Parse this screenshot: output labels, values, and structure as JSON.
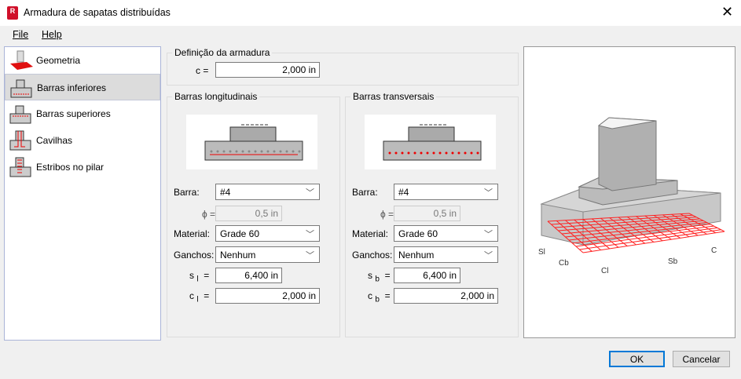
{
  "window": {
    "title": "Armadura de sapatas distribuídas",
    "close_icon": "close-icon"
  },
  "menu": {
    "file": "File",
    "help": "Help"
  },
  "sidebar": {
    "items": [
      {
        "label": "Geometria",
        "icon": "footing-geometry-icon"
      },
      {
        "label": "Barras inferiores",
        "icon": "bottom-bars-icon"
      },
      {
        "label": "Barras superiores",
        "icon": "top-bars-icon"
      },
      {
        "label": "Cavilhas",
        "icon": "dowels-icon"
      },
      {
        "label": "Estribos no pilar",
        "icon": "column-stirrups-icon"
      }
    ],
    "selected": "Barras inferiores"
  },
  "definition": {
    "title": "Definição da armadura",
    "c_label": "c =",
    "c_value": "2,000 in"
  },
  "longitudinal": {
    "title": "Barras longitudinais",
    "bar_label": "Barra:",
    "bar_value": "#4",
    "phi_label": "ϕ =",
    "phi_value": "0,5 in",
    "material_label": "Material:",
    "material_value": "Grade 60",
    "hooks_label": "Ganchos:",
    "hooks_value": "Nenhum",
    "s_label": "s",
    "s_sub": "l",
    "s_value": "6,400 in",
    "c_label": "c",
    "c_sub": "l",
    "c_value": "2,000 in",
    "eq": "="
  },
  "transversal": {
    "title": "Barras transversais",
    "bar_label": "Barra:",
    "bar_value": "#4",
    "phi_label": "ϕ =",
    "phi_value": "0,5 in",
    "material_label": "Material:",
    "material_value": "Grade 60",
    "hooks_label": "Ganchos:",
    "hooks_value": "Nenhum",
    "s_label": "s",
    "s_sub": "b",
    "s_value": "6,400 in",
    "c_label": "c",
    "c_sub": "b",
    "c_value": "2,000 in",
    "eq": "="
  },
  "preview": {
    "labels": {
      "sl": "Sl",
      "cb": "Cb",
      "cl": "Cl",
      "sb": "Sb",
      "c": "C"
    },
    "rebar_color": "#ff2020"
  },
  "buttons": {
    "ok": "OK",
    "cancel": "Cancelar"
  }
}
